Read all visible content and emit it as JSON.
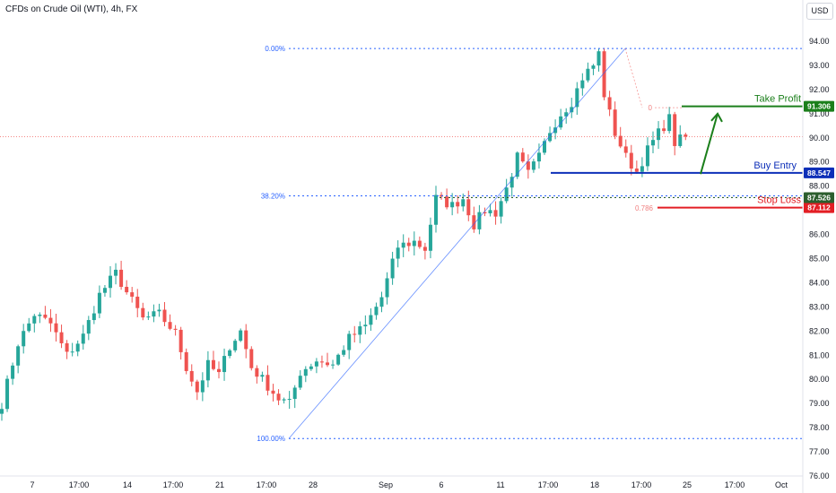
{
  "header": {
    "title": "CFDs on Crude Oil (WTI), 4h, FX",
    "currency": "USD"
  },
  "colors": {
    "up": "#26a69a",
    "down": "#ef5350",
    "fib": "#2962ff",
    "take_profit": "#1b7f1b",
    "buy_entry": "#0d2fb8",
    "stop_loss": "#e31e24",
    "last_price": "#ef5350"
  },
  "chart_data": {
    "type": "candlestick",
    "title": "CFDs on Crude Oil (WTI), 4h, FX",
    "xlabel": "",
    "ylabel": "",
    "ylim": [
      76.0,
      94.6
    ],
    "y_ticks": [
      76,
      77,
      78,
      79,
      80,
      81,
      82,
      83,
      84,
      85,
      86,
      87,
      88,
      89,
      90,
      91,
      92,
      93,
      94
    ],
    "x_ticks": [
      "7",
      "17:00",
      "14",
      "17:00",
      "21",
      "17:00",
      "28",
      "Sep",
      "6",
      "11",
      "17:00",
      "18",
      "17:00",
      "25",
      "17:00",
      "Oct"
    ],
    "grid": false,
    "fibonacci": {
      "levels": [
        {
          "label": "0.00%",
          "price": 93.7
        },
        {
          "label": "38.20%",
          "price": 87.6
        },
        {
          "label": "100.00%",
          "price": 77.55
        }
      ],
      "from_price": 77.55,
      "to_price": 93.7
    },
    "retracement_labels": [
      {
        "label": "0",
        "price": 91.25
      },
      {
        "label": "0.786",
        "price": 87.1
      }
    ],
    "levels": [
      {
        "name": "Take Profit",
        "price": 91.306,
        "price_label": "91.306"
      },
      {
        "name": "Buy Entry",
        "price": 88.547,
        "price_label": "88.547"
      },
      {
        "name": "Stop Loss",
        "price": 87.112,
        "price_label": "87.112"
      }
    ],
    "dotted_level": {
      "price": 87.526,
      "price_label": "87.526"
    },
    "last_price": 90.05,
    "anchors": [
      {
        "t": 0,
        "p": 79.0
      },
      {
        "t": 3,
        "p": 81.5
      },
      {
        "t": 6,
        "p": 82.7
      },
      {
        "t": 9,
        "p": 82.3
      },
      {
        "t": 12,
        "p": 81.0
      },
      {
        "t": 15,
        "p": 81.8
      },
      {
        "t": 18,
        "p": 83.5
      },
      {
        "t": 21,
        "p": 84.4
      },
      {
        "t": 23,
        "p": 83.6
      },
      {
        "t": 26,
        "p": 82.5
      },
      {
        "t": 29,
        "p": 82.7
      },
      {
        "t": 32,
        "p": 81.9
      },
      {
        "t": 34,
        "p": 80.5
      },
      {
        "t": 36,
        "p": 79.5
      },
      {
        "t": 38,
        "p": 80.6
      },
      {
        "t": 40,
        "p": 80.2
      },
      {
        "t": 42,
        "p": 81.4
      },
      {
        "t": 44,
        "p": 82.0
      },
      {
        "t": 46,
        "p": 80.5
      },
      {
        "t": 48,
        "p": 80.0
      },
      {
        "t": 51,
        "p": 79.2
      },
      {
        "t": 53,
        "p": 79.0
      },
      {
        "t": 55,
        "p": 80.3
      },
      {
        "t": 58,
        "p": 80.8
      },
      {
        "t": 61,
        "p": 80.6
      },
      {
        "t": 64,
        "p": 81.7
      },
      {
        "t": 67,
        "p": 82.2
      },
      {
        "t": 70,
        "p": 83.4
      },
      {
        "t": 73,
        "p": 85.5
      },
      {
        "t": 76,
        "p": 85.7
      },
      {
        "t": 78,
        "p": 85.4
      },
      {
        "t": 80,
        "p": 87.5
      },
      {
        "t": 83,
        "p": 87.2
      },
      {
        "t": 85,
        "p": 87.5
      },
      {
        "t": 87,
        "p": 86.4
      },
      {
        "t": 89,
        "p": 87.0
      },
      {
        "t": 91,
        "p": 86.9
      },
      {
        "t": 93,
        "p": 87.9
      },
      {
        "t": 95,
        "p": 89.2
      },
      {
        "t": 97,
        "p": 88.5
      },
      {
        "t": 99,
        "p": 89.2
      },
      {
        "t": 101,
        "p": 90.3
      },
      {
        "t": 103,
        "p": 91.0
      },
      {
        "t": 105,
        "p": 91.5
      },
      {
        "t": 107,
        "p": 92.5
      },
      {
        "t": 109,
        "p": 93.0
      },
      {
        "t": 110,
        "p": 93.5
      },
      {
        "t": 111,
        "p": 91.8
      },
      {
        "t": 113,
        "p": 90.2
      },
      {
        "t": 115,
        "p": 89.2
      },
      {
        "t": 117,
        "p": 88.6
      },
      {
        "t": 119,
        "p": 89.5
      },
      {
        "t": 121,
        "p": 90.2
      },
      {
        "t": 123,
        "p": 90.8
      },
      {
        "t": 124,
        "p": 89.8
      },
      {
        "t": 126,
        "p": 90.05
      }
    ]
  },
  "price_labels": {
    "take_profit": "91.306",
    "buy_entry": "88.547",
    "dotted": "87.526",
    "stop_loss": "87.112"
  }
}
